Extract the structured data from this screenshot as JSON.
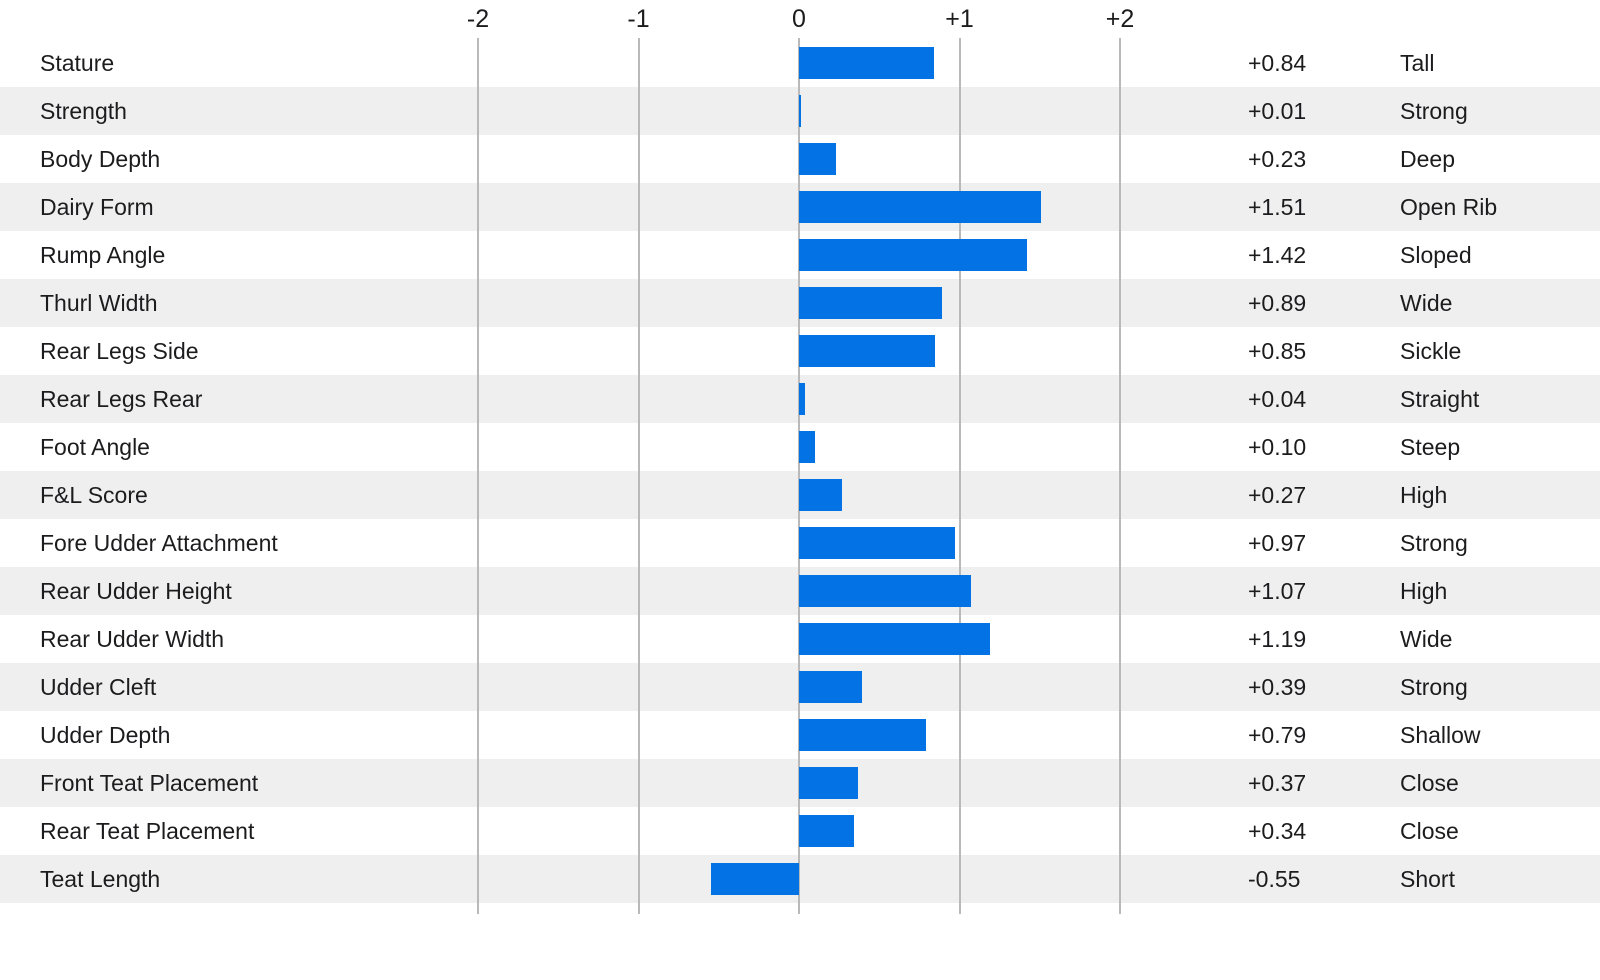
{
  "chart_data": {
    "type": "bar",
    "orientation": "horizontal",
    "title": "",
    "bar_color": "#0272e4",
    "row_alt_color": "#efefef",
    "gridline_color": "#b9b9b9",
    "axis": {
      "ticks": [
        "-2",
        "-1",
        "0",
        "+1",
        "+2"
      ],
      "tick_values": [
        -2,
        -1,
        0,
        1,
        2
      ],
      "range": [
        -2.5,
        2.5
      ],
      "grid": true,
      "position": "top"
    },
    "rows": [
      {
        "trait": "Stature",
        "value": 0.84,
        "value_label": "+0.84",
        "descriptor": "Tall"
      },
      {
        "trait": "Strength",
        "value": 0.01,
        "value_label": "+0.01",
        "descriptor": "Strong"
      },
      {
        "trait": "Body Depth",
        "value": 0.23,
        "value_label": "+0.23",
        "descriptor": "Deep"
      },
      {
        "trait": "Dairy Form",
        "value": 1.51,
        "value_label": "+1.51",
        "descriptor": "Open Rib"
      },
      {
        "trait": "Rump Angle",
        "value": 1.42,
        "value_label": "+1.42",
        "descriptor": "Sloped"
      },
      {
        "trait": "Thurl Width",
        "value": 0.89,
        "value_label": "+0.89",
        "descriptor": "Wide"
      },
      {
        "trait": "Rear Legs Side",
        "value": 0.85,
        "value_label": "+0.85",
        "descriptor": "Sickle"
      },
      {
        "trait": "Rear Legs Rear",
        "value": 0.04,
        "value_label": "+0.04",
        "descriptor": "Straight"
      },
      {
        "trait": "Foot Angle",
        "value": 0.1,
        "value_label": "+0.10",
        "descriptor": "Steep"
      },
      {
        "trait": "F&L Score",
        "value": 0.27,
        "value_label": "+0.27",
        "descriptor": "High"
      },
      {
        "trait": "Fore Udder Attachment",
        "value": 0.97,
        "value_label": "+0.97",
        "descriptor": "Strong"
      },
      {
        "trait": "Rear Udder Height",
        "value": 1.07,
        "value_label": "+1.07",
        "descriptor": "High"
      },
      {
        "trait": "Rear Udder Width",
        "value": 1.19,
        "value_label": "+1.19",
        "descriptor": "Wide"
      },
      {
        "trait": "Udder Cleft",
        "value": 0.39,
        "value_label": "+0.39",
        "descriptor": "Strong"
      },
      {
        "trait": "Udder Depth",
        "value": 0.79,
        "value_label": "+0.79",
        "descriptor": "Shallow"
      },
      {
        "trait": "Front Teat Placement",
        "value": 0.37,
        "value_label": "+0.37",
        "descriptor": "Close"
      },
      {
        "trait": "Rear Teat Placement",
        "value": 0.34,
        "value_label": "+0.34",
        "descriptor": "Close"
      },
      {
        "trait": "Teat Length",
        "value": -0.55,
        "value_label": "-0.55",
        "descriptor": "Short"
      }
    ]
  }
}
